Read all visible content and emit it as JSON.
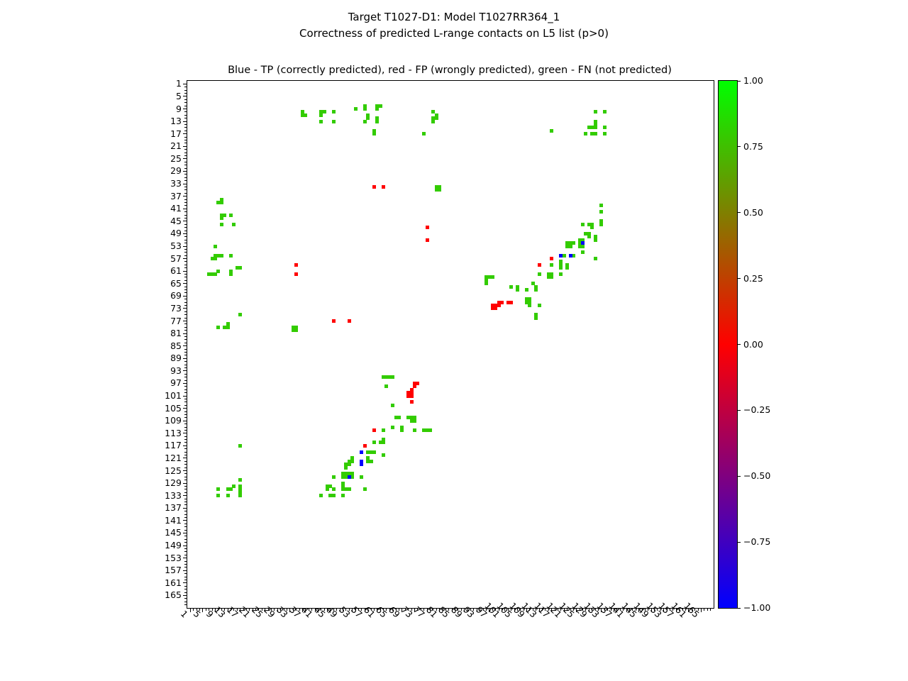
{
  "title": {
    "line1": "Target T1027-D1: Model T1027RR364_1",
    "line2": "Correctness of predicted L-range contacts on L5 list (p>0)"
  },
  "axes_title": "Blue - TP (correctly predicted), red - FP (wrongly predicted), green - FN (not predicted)",
  "chart_data": {
    "type": "scatter",
    "title": "Blue - TP (correctly predicted), red - FP (wrongly predicted), green - FN (not predicted)",
    "xlabel": "",
    "ylabel": "",
    "xlim": [
      0,
      169
    ],
    "ylim_top_to_bottom": [
      0,
      169
    ],
    "grid": false,
    "tick_labels": [
      1,
      5,
      9,
      13,
      17,
      21,
      25,
      29,
      33,
      37,
      41,
      45,
      49,
      53,
      57,
      61,
      65,
      69,
      73,
      77,
      81,
      85,
      89,
      93,
      97,
      101,
      105,
      109,
      113,
      117,
      121,
      125,
      129,
      133,
      137,
      141,
      145,
      149,
      153,
      157,
      161,
      165
    ],
    "minor_tick_every": 1,
    "colors": {
      "tp_blue": "#0000ff",
      "fp_red": "#ff0000",
      "fn_green": "#33cc00"
    },
    "colorbar": {
      "tick_labels": [
        "1.00",
        "0.75",
        "0.50",
        "0.25",
        "0.00",
        "−0.25",
        "−0.50",
        "−0.75",
        "−1.00"
      ],
      "gradient_top_to_bottom": [
        "#00ff00",
        "#ff0000",
        "#0000ff"
      ]
    },
    "series": [
      {
        "name": "FN (not predicted)",
        "color_key": "fn_green",
        "points": [
          [
            37,
            10
          ],
          [
            37,
            11
          ],
          [
            38,
            11
          ],
          [
            43,
            10
          ],
          [
            44,
            10
          ],
          [
            43,
            11
          ],
          [
            43,
            13
          ],
          [
            47,
            10
          ],
          [
            47,
            13
          ],
          [
            54,
            9
          ],
          [
            57,
            8
          ],
          [
            57,
            9
          ],
          [
            58,
            11
          ],
          [
            58,
            12
          ],
          [
            57,
            13
          ],
          [
            61,
            8
          ],
          [
            61,
            9
          ],
          [
            62,
            8
          ],
          [
            61,
            12
          ],
          [
            61,
            13
          ],
          [
            60,
            16
          ],
          [
            60,
            17
          ],
          [
            79,
            10
          ],
          [
            80,
            11
          ],
          [
            79,
            12
          ],
          [
            80,
            12
          ],
          [
            79,
            13
          ],
          [
            76,
            17
          ],
          [
            117,
            16
          ],
          [
            131,
            10
          ],
          [
            134,
            10
          ],
          [
            131,
            13
          ],
          [
            131,
            14
          ],
          [
            129,
            15
          ],
          [
            130,
            15
          ],
          [
            131,
            15
          ],
          [
            134,
            15
          ],
          [
            128,
            17
          ],
          [
            130,
            17
          ],
          [
            131,
            17
          ],
          [
            134,
            17
          ],
          [
            80,
            34
          ],
          [
            81,
            34
          ],
          [
            80,
            35
          ],
          [
            81,
            35
          ],
          [
            11,
            38
          ],
          [
            10,
            39
          ],
          [
            11,
            39
          ],
          [
            11,
            43
          ],
          [
            12,
            43
          ],
          [
            14,
            43
          ],
          [
            11,
            44
          ],
          [
            11,
            46
          ],
          [
            15,
            46
          ],
          [
            9,
            53
          ],
          [
            9,
            56
          ],
          [
            10,
            56
          ],
          [
            11,
            56
          ],
          [
            14,
            56
          ],
          [
            8,
            57
          ],
          [
            9,
            57
          ],
          [
            16,
            60
          ],
          [
            17,
            60
          ],
          [
            10,
            61
          ],
          [
            14,
            61
          ],
          [
            7,
            62
          ],
          [
            8,
            62
          ],
          [
            9,
            62
          ],
          [
            14,
            62
          ],
          [
            133,
            40
          ],
          [
            133,
            42
          ],
          [
            133,
            45
          ],
          [
            133,
            46
          ],
          [
            127,
            46
          ],
          [
            129,
            46
          ],
          [
            130,
            46
          ],
          [
            130,
            47
          ],
          [
            128,
            49
          ],
          [
            129,
            49
          ],
          [
            129,
            50
          ],
          [
            131,
            50
          ],
          [
            131,
            51
          ],
          [
            126,
            51
          ],
          [
            127,
            51
          ],
          [
            126,
            52
          ],
          [
            126,
            53
          ],
          [
            127,
            53
          ],
          [
            122,
            52
          ],
          [
            123,
            52
          ],
          [
            124,
            52
          ],
          [
            122,
            53
          ],
          [
            123,
            53
          ],
          [
            127,
            55
          ],
          [
            121,
            56
          ],
          [
            124,
            56
          ],
          [
            131,
            57
          ],
          [
            120,
            58
          ],
          [
            117,
            59
          ],
          [
            120,
            59
          ],
          [
            122,
            59
          ],
          [
            120,
            60
          ],
          [
            122,
            60
          ],
          [
            113,
            62
          ],
          [
            116,
            62
          ],
          [
            117,
            62
          ],
          [
            120,
            62
          ],
          [
            96,
            63
          ],
          [
            97,
            63
          ],
          [
            98,
            63
          ],
          [
            116,
            63
          ],
          [
            117,
            63
          ],
          [
            96,
            64
          ],
          [
            96,
            65
          ],
          [
            111,
            65
          ],
          [
            104,
            66
          ],
          [
            106,
            66
          ],
          [
            112,
            66
          ],
          [
            106,
            67
          ],
          [
            109,
            67
          ],
          [
            112,
            67
          ],
          [
            109,
            70
          ],
          [
            110,
            70
          ],
          [
            109,
            71
          ],
          [
            110,
            71
          ],
          [
            110,
            72
          ],
          [
            113,
            72
          ],
          [
            112,
            75
          ],
          [
            112,
            76
          ],
          [
            17,
            75
          ],
          [
            13,
            78
          ],
          [
            10,
            79
          ],
          [
            12,
            79
          ],
          [
            13,
            79
          ],
          [
            34,
            79
          ],
          [
            35,
            79
          ],
          [
            34,
            80
          ],
          [
            35,
            80
          ],
          [
            63,
            95
          ],
          [
            64,
            95
          ],
          [
            65,
            95
          ],
          [
            66,
            95
          ],
          [
            64,
            98
          ],
          [
            66,
            104
          ],
          [
            67,
            108
          ],
          [
            68,
            108
          ],
          [
            71,
            108
          ],
          [
            72,
            108
          ],
          [
            73,
            108
          ],
          [
            72,
            109
          ],
          [
            73,
            109
          ],
          [
            66,
            111
          ],
          [
            69,
            111
          ],
          [
            63,
            112
          ],
          [
            69,
            112
          ],
          [
            73,
            112
          ],
          [
            76,
            112
          ],
          [
            77,
            112
          ],
          [
            78,
            112
          ],
          [
            63,
            115
          ],
          [
            60,
            116
          ],
          [
            62,
            116
          ],
          [
            63,
            116
          ],
          [
            17,
            117
          ],
          [
            58,
            119
          ],
          [
            59,
            119
          ],
          [
            60,
            119
          ],
          [
            63,
            120
          ],
          [
            53,
            121
          ],
          [
            58,
            121
          ],
          [
            52,
            122
          ],
          [
            53,
            122
          ],
          [
            58,
            122
          ],
          [
            59,
            122
          ],
          [
            51,
            123
          ],
          [
            52,
            123
          ],
          [
            51,
            124
          ],
          [
            50,
            126
          ],
          [
            51,
            126
          ],
          [
            52,
            126
          ],
          [
            53,
            126
          ],
          [
            47,
            127
          ],
          [
            50,
            127
          ],
          [
            51,
            127
          ],
          [
            53,
            127
          ],
          [
            56,
            127
          ],
          [
            17,
            128
          ],
          [
            50,
            129
          ],
          [
            15,
            130
          ],
          [
            17,
            130
          ],
          [
            45,
            130
          ],
          [
            46,
            130
          ],
          [
            50,
            130
          ],
          [
            10,
            131
          ],
          [
            13,
            131
          ],
          [
            14,
            131
          ],
          [
            17,
            131
          ],
          [
            45,
            131
          ],
          [
            47,
            131
          ],
          [
            50,
            131
          ],
          [
            51,
            131
          ],
          [
            52,
            131
          ],
          [
            57,
            131
          ],
          [
            17,
            132
          ],
          [
            10,
            133
          ],
          [
            13,
            133
          ],
          [
            17,
            133
          ],
          [
            43,
            133
          ],
          [
            46,
            133
          ],
          [
            47,
            133
          ],
          [
            50,
            133
          ]
        ]
      },
      {
        "name": "FP (wrongly predicted)",
        "color_key": "fp_red",
        "points": [
          [
            60,
            34
          ],
          [
            63,
            34
          ],
          [
            77,
            47
          ],
          [
            77,
            51
          ],
          [
            35,
            59
          ],
          [
            113,
            59
          ],
          [
            35,
            62
          ],
          [
            117,
            57
          ],
          [
            100,
            71
          ],
          [
            101,
            71
          ],
          [
            103,
            71
          ],
          [
            104,
            71
          ],
          [
            98,
            72
          ],
          [
            99,
            72
          ],
          [
            100,
            72
          ],
          [
            98,
            73
          ],
          [
            99,
            73
          ],
          [
            47,
            77
          ],
          [
            52,
            77
          ],
          [
            73,
            97
          ],
          [
            74,
            97
          ],
          [
            73,
            98
          ],
          [
            72,
            99
          ],
          [
            71,
            100
          ],
          [
            72,
            100
          ],
          [
            71,
            101
          ],
          [
            72,
            101
          ],
          [
            72,
            103
          ],
          [
            60,
            112
          ],
          [
            57,
            117
          ]
        ]
      },
      {
        "name": "TP (correctly predicted)",
        "color_key": "tp_blue",
        "points": [
          [
            127,
            52
          ],
          [
            120,
            56
          ],
          [
            123,
            56
          ],
          [
            56,
            119
          ],
          [
            56,
            122
          ],
          [
            56,
            123
          ],
          [
            52,
            127
          ]
        ]
      }
    ]
  }
}
